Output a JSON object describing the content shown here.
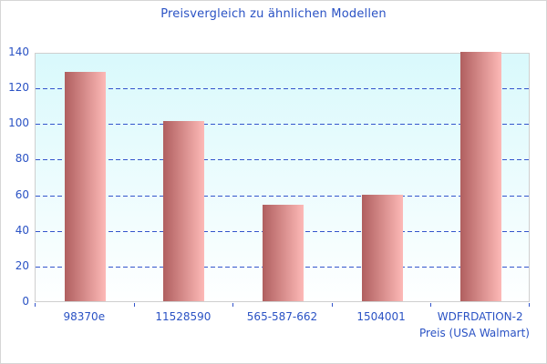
{
  "chart_data": {
    "type": "bar",
    "title": "Preisvergleich zu ähnlichen Modellen",
    "xlabel": "Preis (USA Walmart)",
    "ylabel": "",
    "categories": [
      "98370e",
      "11528590",
      "565-587-662",
      "1504001",
      "WDFRDATION-2"
    ],
    "values": [
      129,
      101,
      54,
      60,
      140
    ],
    "ylim": [
      0,
      140
    ],
    "yticks": [
      0,
      20,
      40,
      60,
      80,
      100,
      120,
      140
    ],
    "grid": "horizontal-dashed",
    "legend": "none",
    "colors": {
      "text": "#2a52c4",
      "gridline": "#3355cc",
      "tick": "#3355cc",
      "bar_gradient_left": "#b05f5f",
      "bar_gradient_right": "#fdb9b7",
      "plot_bg_top": "#d9f9fc",
      "plot_bg_bottom": "#feffff",
      "plot_border": "#cfcfcf",
      "frame_border": "#d6d6d6"
    }
  }
}
